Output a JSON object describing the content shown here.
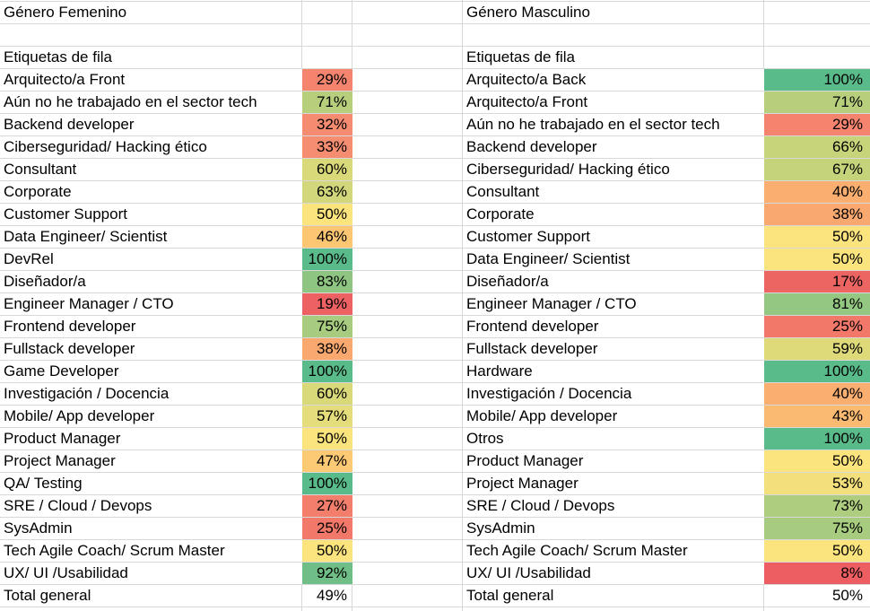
{
  "grid_color": "#d8d8d8",
  "text_color": "#000000",
  "left_table": {
    "title": "Género Femenino",
    "row_header": "Etiquetas de fila",
    "rows": [
      {
        "label": "Arquitecto/a Front",
        "value": "29%",
        "color": "#F4846E"
      },
      {
        "label": "Aún no he trabajado en el sector tech",
        "value": "71%",
        "color": "#B7CF7D"
      },
      {
        "label": "Backend developer",
        "value": "32%",
        "color": "#F58B70"
      },
      {
        "label": "Ciberseguridad/ Hacking ético",
        "value": "33%",
        "color": "#F58D71"
      },
      {
        "label": "Consultant",
        "value": "60%",
        "color": "#DAD97A"
      },
      {
        "label": "Corporate",
        "value": "63%",
        "color": "#D1D77A"
      },
      {
        "label": "Customer Support",
        "value": "50%",
        "color": "#FBE37D"
      },
      {
        "label": "Data Engineer/ Scientist",
        "value": "46%",
        "color": "#FCC673"
      },
      {
        "label": "DevRel",
        "value": "100%",
        "color": "#5ABB8A"
      },
      {
        "label": "Diseñador/a",
        "value": "83%",
        "color": "#8EC583"
      },
      {
        "label": "Engineer Manager / CTO",
        "value": "19%",
        "color": "#EE6163"
      },
      {
        "label": "Frontend developer",
        "value": "75%",
        "color": "#A7CC7F"
      },
      {
        "label": "Fullstack developer",
        "value": "38%",
        "color": "#F9A96F"
      },
      {
        "label": "Game Developer",
        "value": "100%",
        "color": "#5ABB8A"
      },
      {
        "label": "Investigación / Docencia",
        "value": "60%",
        "color": "#DAD97A"
      },
      {
        "label": "Mobile/ App developer",
        "value": "57%",
        "color": "#E5DC7B"
      },
      {
        "label": "Product Manager",
        "value": "50%",
        "color": "#FBE37D"
      },
      {
        "label": "Project Manager",
        "value": "47%",
        "color": "#FCCA74"
      },
      {
        "label": "QA/ Testing",
        "value": "100%",
        "color": "#5ABB8A"
      },
      {
        "label": "SRE / Cloud / Devops",
        "value": "27%",
        "color": "#F37E6C"
      },
      {
        "label": "SysAdmin",
        "value": "25%",
        "color": "#F2786A"
      },
      {
        "label": "Tech Agile Coach/ Scrum Master",
        "value": "50%",
        "color": "#FBE37D"
      },
      {
        "label": "UX/ UI /Usabilidad",
        "value": "92%",
        "color": "#70BE87"
      }
    ],
    "total_label": "Total general",
    "total_value": "49%"
  },
  "right_table": {
    "title": "Género Masculino",
    "row_header": "Etiquetas de fila",
    "rows": [
      {
        "label": "Arquitecto/a Back",
        "value": "100%",
        "color": "#5ABB8A"
      },
      {
        "label": "Arquitecto/a Front",
        "value": "71%",
        "color": "#B7CF7D"
      },
      {
        "label": "Aún no he trabajado en el sector tech",
        "value": "29%",
        "color": "#F4846E"
      },
      {
        "label": "Backend developer",
        "value": "66%",
        "color": "#C8D47A"
      },
      {
        "label": "Ciberseguridad/ Hacking ético",
        "value": "67%",
        "color": "#C5D37A"
      },
      {
        "label": "Consultant",
        "value": "40%",
        "color": "#FAAF70"
      },
      {
        "label": "Corporate",
        "value": "38%",
        "color": "#F9A96F"
      },
      {
        "label": "Customer Support",
        "value": "50%",
        "color": "#FBE37D"
      },
      {
        "label": "Data Engineer/ Scientist",
        "value": "50%",
        "color": "#FBE37D"
      },
      {
        "label": "Diseñador/a",
        "value": "17%",
        "color": "#ED6563"
      },
      {
        "label": "Engineer Manager / CTO",
        "value": "81%",
        "color": "#94C781"
      },
      {
        "label": "Frontend developer",
        "value": "25%",
        "color": "#F2786A"
      },
      {
        "label": "Fullstack developer",
        "value": "59%",
        "color": "#DEDA7A"
      },
      {
        "label": "Hardware",
        "value": "100%",
        "color": "#5ABB8A"
      },
      {
        "label": "Investigación / Docencia",
        "value": "40%",
        "color": "#FAAF70"
      },
      {
        "label": "Mobile/ App developer",
        "value": "43%",
        "color": "#FBBA72"
      },
      {
        "label": "Otros",
        "value": "100%",
        "color": "#5ABB8A"
      },
      {
        "label": "Product Manager",
        "value": "50%",
        "color": "#FBE37D"
      },
      {
        "label": "Project Manager",
        "value": "53%",
        "color": "#F3DF7B"
      },
      {
        "label": "SRE / Cloud / Devops",
        "value": "73%",
        "color": "#AFCD7E"
      },
      {
        "label": "SysAdmin",
        "value": "75%",
        "color": "#A7CC7F"
      },
      {
        "label": "Tech Agile Coach/ Scrum Master",
        "value": "50%",
        "color": "#FBE37D"
      },
      {
        "label": "UX/ UI /Usabilidad",
        "value": "8%",
        "color": "#ED5E62"
      }
    ],
    "total_label": "Total general",
    "total_value": "50%"
  }
}
